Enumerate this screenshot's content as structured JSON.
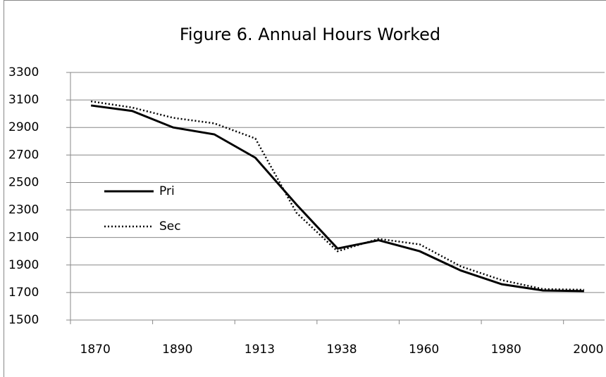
{
  "chart_data": {
    "type": "line",
    "title": "Figure 6.  Annual Hours Worked",
    "categories": [
      "1870",
      null,
      "1890",
      null,
      "1913",
      null,
      "1938",
      null,
      "1960",
      null,
      "1980",
      null,
      "2000"
    ],
    "series": [
      {
        "name": "Pri",
        "color": "#000000",
        "dash": "solid",
        "values": [
          3060,
          3020,
          2900,
          2850,
          2680,
          2340,
          2020,
          2080,
          2000,
          1860,
          1760,
          1715,
          1710
        ]
      },
      {
        "name": "Sec",
        "color": "#000000",
        "dash": "dotted",
        "values": [
          3090,
          3045,
          2970,
          2930,
          2820,
          2280,
          2000,
          2090,
          2050,
          1890,
          1790,
          1725,
          1720
        ]
      }
    ],
    "ylim": [
      1500,
      3300
    ],
    "yticks": [
      1500,
      1700,
      1900,
      2100,
      2300,
      2500,
      2700,
      2900,
      3100,
      3300
    ],
    "grid": true
  }
}
